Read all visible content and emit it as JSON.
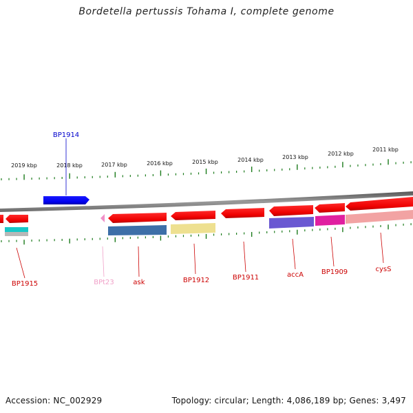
{
  "title": "Bordetella pertussis Tohama I, complete genome",
  "footer": {
    "accession": "Accession: NC_002929",
    "topology": "Topology: circular; Length: 4,086,189 bp; Genes: 3,497"
  },
  "kbp_labels": [
    "2011 kbp",
    "2012 kbp",
    "2013 kbp",
    "2014 kbp",
    "2015 kbp",
    "2016 kbp",
    "2017 kbp",
    "2018 kbp",
    "2019 kbp"
  ],
  "gene_labels": [
    {
      "id": "BP1914",
      "text": "BP1914",
      "color": "#0000cc"
    },
    {
      "id": "BP1915",
      "text": "BP1915",
      "color": "#cc0000"
    },
    {
      "id": "BPt23",
      "text": "BPt23",
      "color": "#f0a0c8"
    },
    {
      "id": "ask",
      "text": "ask",
      "color": "#cc0000"
    },
    {
      "id": "BP1912",
      "text": "BP1912",
      "color": "#cc0000"
    },
    {
      "id": "BP1911",
      "text": "BP1911",
      "color": "#cc0000"
    },
    {
      "id": "accA",
      "text": "accA",
      "color": "#cc0000"
    },
    {
      "id": "BP1909",
      "text": "BP1909",
      "color": "#cc0000"
    },
    {
      "id": "cysS",
      "text": "cysS",
      "color": "#cc0000"
    }
  ],
  "colors": {
    "backbone": "#7a7a7a",
    "tick": "#1a7a1a",
    "forward_gene": "#0000ee",
    "reverse_gene": "#ee0000"
  }
}
